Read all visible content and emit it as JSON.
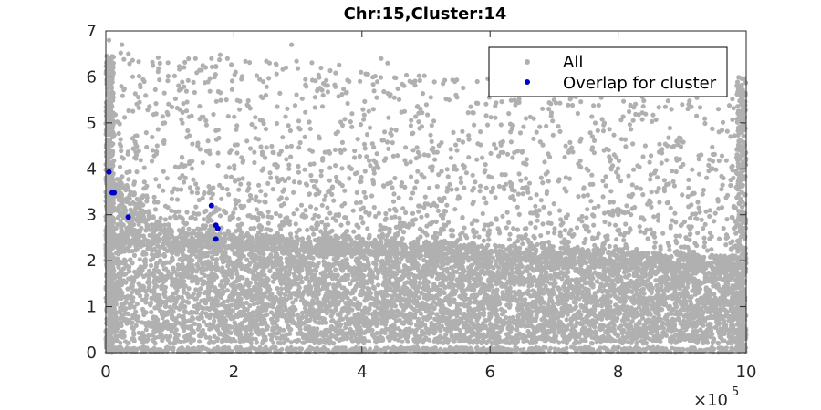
{
  "chart_data": {
    "type": "scatter",
    "title": "Chr:15,Cluster:14",
    "xlabel": "",
    "ylabel": "",
    "xlim": [
      0,
      1000000
    ],
    "ylim": [
      0,
      7
    ],
    "x_ticks": [
      0,
      200000,
      400000,
      600000,
      800000,
      1000000
    ],
    "x_tick_labels": [
      "0",
      "2",
      "4",
      "6",
      "8",
      "10"
    ],
    "x_exponent_prefix": "×10",
    "x_exponent": "5",
    "y_ticks": [
      0,
      1,
      2,
      3,
      4,
      5,
      6,
      7
    ],
    "y_tick_labels": [
      "0",
      "1",
      "2",
      "3",
      "4",
      "5",
      "6",
      "7"
    ],
    "grid": false,
    "legend_position": "top-right",
    "series": [
      {
        "name": "All",
        "color": "#b0b0b0",
        "description_of_density": "dense cloud concentrated between 0.2 and 2.5, sparse points up to ~6.7",
        "sample_points": [
          [
            5000,
            6.8
          ],
          [
            12000,
            6.3
          ],
          [
            25000,
            6.7
          ],
          [
            60000,
            5.9
          ],
          [
            140000,
            6.4
          ],
          [
            165000,
            6.4
          ],
          [
            190000,
            6.4
          ],
          [
            290000,
            6.7
          ],
          [
            430000,
            6.4
          ],
          [
            440000,
            6.3
          ],
          [
            545000,
            5.9
          ],
          [
            580000,
            5.9
          ],
          [
            640000,
            5.7
          ],
          [
            700000,
            5.5
          ],
          [
            810000,
            5.6
          ],
          [
            900000,
            5.4
          ],
          [
            990000,
            5.8
          ],
          [
            330000,
            5.7
          ],
          [
            250000,
            5.6
          ],
          [
            380000,
            5.9
          ]
        ]
      },
      {
        "name": "Overlap for cluster",
        "color": "#0000cc",
        "points": [
          [
            5000,
            3.93
          ],
          [
            10000,
            3.48
          ],
          [
            13000,
            3.48
          ],
          [
            35000,
            2.95
          ],
          [
            165000,
            3.2
          ],
          [
            172000,
            2.77
          ],
          [
            175000,
            2.7
          ],
          [
            172000,
            2.47
          ]
        ]
      }
    ]
  }
}
